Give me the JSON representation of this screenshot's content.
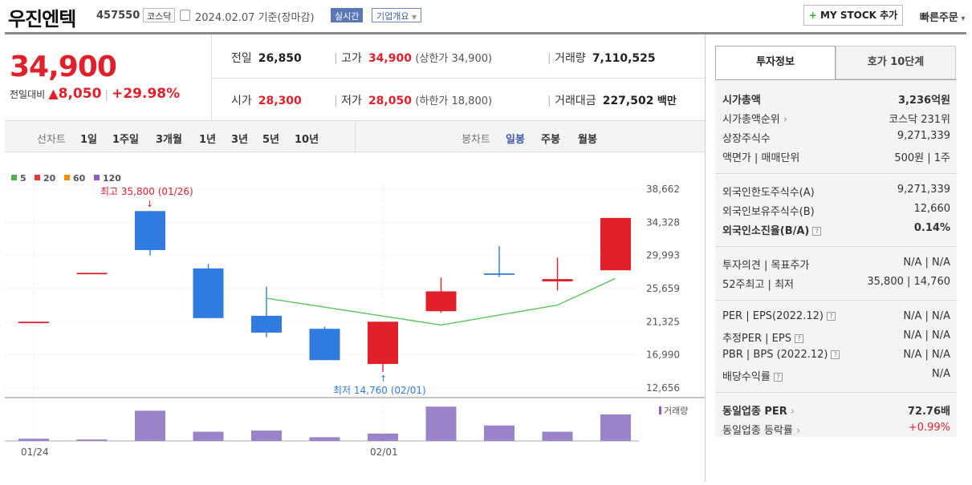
{
  "header": {
    "stock_name": "우진엔텍",
    "stock_code": "457550",
    "market": "코스닥",
    "date": "2024.02.07",
    "basis": "기준(장마감)",
    "realtime": "실시간",
    "company_info": "기업개요",
    "mystock": "MY STOCK 추가",
    "quick_order": "빠른주문"
  },
  "price": {
    "current": "34,900",
    "diff_label": "전일대비",
    "diff": "8,050",
    "pct": "+29.98%"
  },
  "stats": {
    "prev_label": "전일",
    "prev": "26,850",
    "high_label": "고가",
    "high": "34,900",
    "high_sub": "(상한가 34,900)",
    "volume_label": "거래량",
    "volume": "7,110,525",
    "open_label": "시가",
    "open": "28,300",
    "low_label": "저가",
    "low": "28,050",
    "low_sub": "(하한가 18,800)",
    "amount_label": "거래대금",
    "amount": "227,502",
    "amount_unit": "백만"
  },
  "range_bar": {
    "line_label": "선차트",
    "periods": [
      "1일",
      "1주일",
      "3개월",
      "1년",
      "3년",
      "5년",
      "10년"
    ],
    "candle_label": "봉차트",
    "candles": [
      "일봉",
      "주봉",
      "월봉"
    ],
    "selected_candle": "일봉"
  },
  "chart_data": {
    "type": "candlestick",
    "legend": [
      {
        "name": "5",
        "color": "#4caf50"
      },
      {
        "name": "20",
        "color": "#e53935"
      },
      {
        "name": "60",
        "color": "#fb8c00"
      },
      {
        "name": "120",
        "color": "#8e5cc4"
      }
    ],
    "y_ticks": [
      38662,
      34328,
      29993,
      25659,
      21325,
      16990,
      12656
    ],
    "y_tick_labels": [
      "38,662",
      "34,328",
      "29,993",
      "25,659",
      "21,325",
      "16,990",
      "12,656"
    ],
    "ylim": [
      12656,
      38662
    ],
    "x_ticks": [
      {
        "label": "01/24",
        "index": 0
      },
      {
        "label": "02/01",
        "index": 6
      }
    ],
    "candles": [
      {
        "open": 21325,
        "high": 21325,
        "low": 21325,
        "close": 21325,
        "color": "#e0202b"
      },
      {
        "open": 27720,
        "high": 27720,
        "low": 27720,
        "close": 27720,
        "color": "#e0202b"
      },
      {
        "open": 35800,
        "high": 35800,
        "low": 30000,
        "close": 30700,
        "color": "#2f7be0"
      },
      {
        "open": 28300,
        "high": 28900,
        "low": 21800,
        "close": 21800,
        "color": "#2f7be0"
      },
      {
        "open": 22100,
        "high": 25900,
        "low": 19300,
        "close": 19900,
        "color": "#2f7be0"
      },
      {
        "open": 20400,
        "high": 20700,
        "low": 16300,
        "close": 16300,
        "color": "#2f7be0"
      },
      {
        "open": 15800,
        "high": 21325,
        "low": 14760,
        "close": 21325,
        "color": "#e0202b"
      },
      {
        "open": 22700,
        "high": 27100,
        "low": 22500,
        "close": 25300,
        "color": "#e0202b"
      },
      {
        "open": 27650,
        "high": 31200,
        "low": 27200,
        "close": 27650,
        "color": "#2f7be0"
      },
      {
        "open": 26600,
        "high": 29700,
        "low": 25400,
        "close": 26900,
        "color": "#e0202b"
      },
      {
        "open": 28050,
        "high": 34900,
        "low": 28050,
        "close": 34900,
        "color": "#e0202b"
      }
    ],
    "ma5": [
      null,
      null,
      null,
      null,
      24400,
      null,
      null,
      20900,
      null,
      23500,
      27000
    ],
    "volume_label": "거래량",
    "volumes": [
      0.06,
      0.04,
      0.82,
      0.25,
      0.28,
      0.1,
      0.2,
      0.93,
      0.42,
      0.25,
      0.72
    ],
    "high_annot": "최고 35,800 (01/26)",
    "low_annot": "최저 14,760 (02/01)"
  },
  "panel": {
    "tab_invest": "투자정보",
    "tab_quote": "호가 10단계",
    "rows1": [
      {
        "l": "시가총액",
        "r": "3,236억원",
        "bold": true
      },
      {
        "l": "시가총액순위",
        "r": "코스닥 231위"
      },
      {
        "l": "상장주식수",
        "r": "9,271,339"
      },
      {
        "l": "액면가 | 매매단위",
        "r": "500원 | 1주"
      }
    ],
    "rows2": [
      {
        "l": "외국인한도주식수(A)",
        "r": "9,271,339"
      },
      {
        "l": "외국인보유주식수(B)",
        "r": "12,660"
      },
      {
        "l": "외국인소진율(B/A)",
        "r": "0.14%",
        "bold": true
      }
    ],
    "rows3": [
      {
        "l": "투자의견 | 목표주가",
        "r": "N/A | N/A"
      },
      {
        "l": "52주최고 | 최저",
        "r": "35,800 | 14,760"
      }
    ],
    "rows4": [
      {
        "l": "PER | EPS(2022.12)",
        "r": "N/A | N/A"
      },
      {
        "l": "추정PER | EPS",
        "r": "N/A | N/A"
      },
      {
        "l": "PBR | BPS (2022.12)",
        "r": "N/A | N/A"
      },
      {
        "l": "배당수익률",
        "r": "N/A"
      }
    ],
    "rows5": [
      {
        "l": "동일업종 PER",
        "r": "72.76배",
        "bold": true
      },
      {
        "l": "동일업종 등락률",
        "r": "+0.99%",
        "red": true
      }
    ]
  }
}
